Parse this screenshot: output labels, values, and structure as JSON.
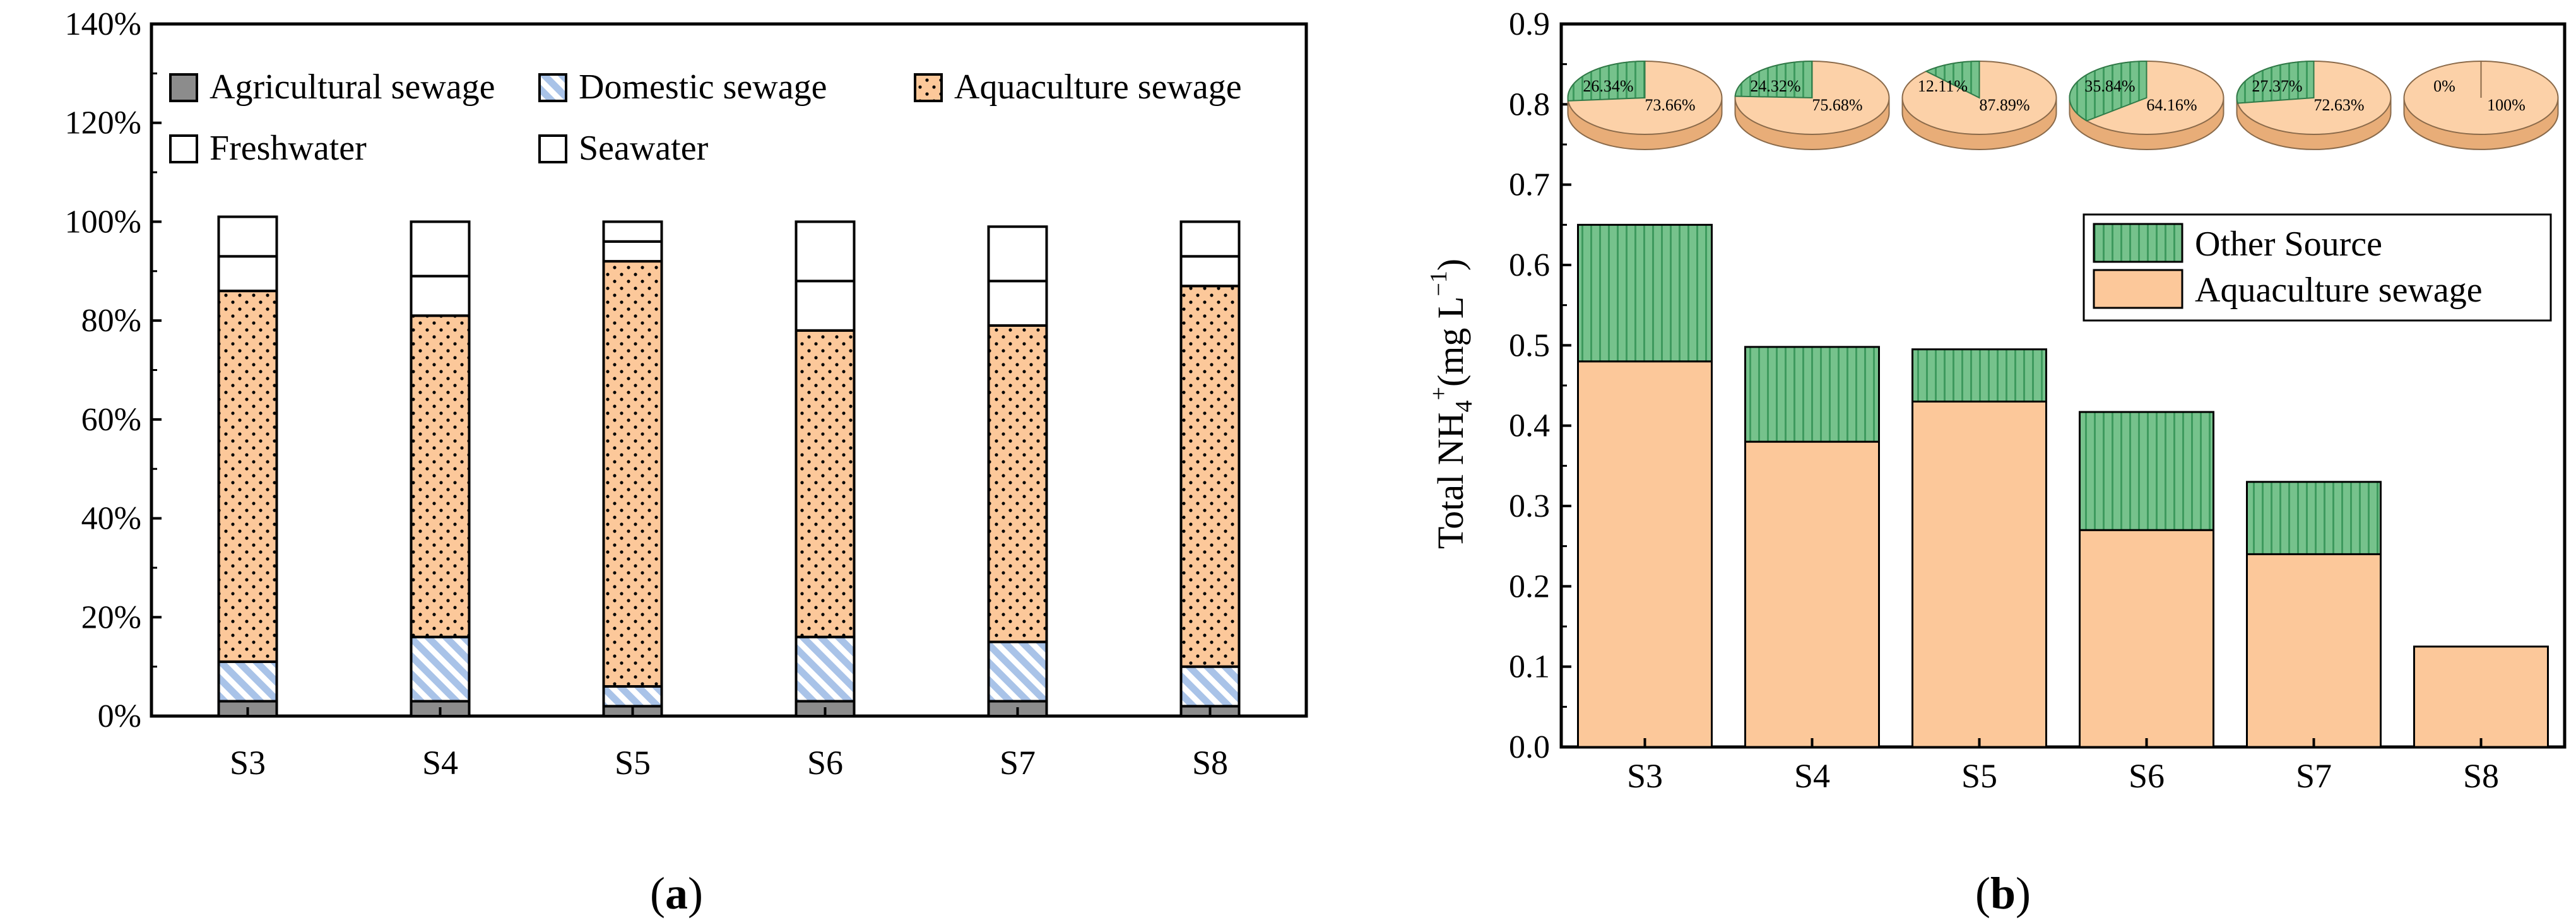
{
  "chart_data": [
    {
      "type": "bar",
      "stacked": true,
      "panel_label": [
        "(",
        "a",
        ")"
      ],
      "categories": [
        "S3",
        "S4",
        "S5",
        "S6",
        "S7",
        "S8"
      ],
      "ylim": [
        0,
        140
      ],
      "y_ticks": [
        "0%",
        "20%",
        "40%",
        "60%",
        "80%",
        "100%",
        "120%",
        "140%"
      ],
      "y_tick_values": [
        0,
        20,
        40,
        60,
        80,
        100,
        120,
        140
      ],
      "legend_position": "top",
      "series": [
        {
          "name": "Agricultural sewage",
          "color": "#8c8c8c",
          "values": [
            3,
            3,
            2,
            3,
            3,
            2
          ]
        },
        {
          "name": "Domestic sewage",
          "color": "#a9c3e8",
          "values": [
            8,
            13,
            4,
            13,
            12,
            8
          ]
        },
        {
          "name": "Aquaculture sewage",
          "color": "#fcc89a",
          "values": [
            75,
            65,
            86,
            62,
            64,
            77
          ]
        },
        {
          "name": "Freshwater",
          "color": "#ffffff",
          "values": [
            7,
            8,
            4,
            10,
            9,
            6
          ]
        },
        {
          "name": "Seawater",
          "color": "#ffffff",
          "values": [
            8,
            11,
            4,
            12,
            11,
            7
          ]
        }
      ]
    },
    {
      "type": "bar",
      "stacked": true,
      "panel_label": [
        "(",
        "b",
        ")"
      ],
      "categories": [
        "S3",
        "S4",
        "S5",
        "S6",
        "S7",
        "S8"
      ],
      "ylabel": [
        "Total NH",
        "4",
        "+",
        "(mg L",
        "−1",
        ")"
      ],
      "ylim": [
        0,
        0.9
      ],
      "y_ticks": [
        "0.0",
        "0.1",
        "0.2",
        "0.3",
        "0.4",
        "0.5",
        "0.6",
        "0.7",
        "0.8",
        "0.9"
      ],
      "y_tick_values": [
        0,
        0.1,
        0.2,
        0.3,
        0.4,
        0.5,
        0.6,
        0.7,
        0.8,
        0.9
      ],
      "legend_position": "center-right",
      "series": [
        {
          "name": "Aquaculture sewage",
          "color": "#fcc89a",
          "values": [
            0.48,
            0.38,
            0.43,
            0.27,
            0.24,
            0.125
          ]
        },
        {
          "name": "Other Source",
          "color": "#76c28c",
          "values": [
            0.17,
            0.118,
            0.065,
            0.147,
            0.09,
            0
          ]
        }
      ],
      "pies": [
        {
          "other": 26.34,
          "aqua": 73.66,
          "other_label": "26.34%",
          "aqua_label": "73.66%"
        },
        {
          "other": 24.32,
          "aqua": 75.68,
          "other_label": "24.32%",
          "aqua_label": "75.68%"
        },
        {
          "other": 12.11,
          "aqua": 87.89,
          "other_label": "12.11%",
          "aqua_label": "87.89%"
        },
        {
          "other": 35.84,
          "aqua": 64.16,
          "other_label": "35.84%",
          "aqua_label": "64.16%"
        },
        {
          "other": 27.37,
          "aqua": 72.63,
          "other_label": "27.37%",
          "aqua_label": "72.63%"
        },
        {
          "other": 0,
          "aqua": 100,
          "other_label": "0%",
          "aqua_label": "100%"
        }
      ]
    }
  ]
}
